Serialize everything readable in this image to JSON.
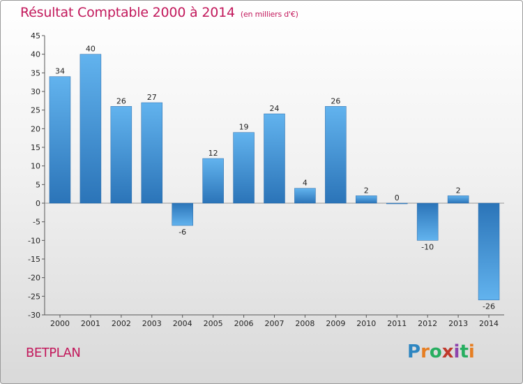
{
  "chart_data": {
    "type": "bar",
    "title": "Résultat Comptable 2000 à 2014",
    "subtitle": "(en milliers d'€)",
    "xlabel": "",
    "ylabel": "",
    "categories": [
      "2000",
      "2001",
      "2002",
      "2003",
      "2004",
      "2005",
      "2006",
      "2007",
      "2008",
      "2009",
      "2010",
      "2011",
      "2012",
      "2013",
      "2014"
    ],
    "values": [
      34,
      40,
      26,
      27,
      -6,
      12,
      19,
      24,
      4,
      26,
      2,
      0,
      -10,
      2,
      -26
    ],
    "data_labels": [
      "34",
      "40",
      "26",
      "27",
      "-6",
      "12",
      "19",
      "24",
      "4",
      "26",
      "2",
      "0",
      "-10",
      "2",
      "-26"
    ],
    "ylim": [
      -30,
      45
    ],
    "yticks": [
      45,
      40,
      35,
      30,
      25,
      20,
      15,
      10,
      5,
      0,
      -5,
      -10,
      -15,
      -20,
      -25,
      -30
    ],
    "ytick_labels": [
      "45",
      "40",
      "35",
      "30",
      "25",
      "20",
      "15",
      "10",
      "5",
      "0",
      "-5",
      "-10",
      "-15",
      "-20",
      "-25",
      "-30"
    ],
    "grid": false,
    "bar_color": "#3a8fd6",
    "bar_color_light": "#5fb0ec",
    "bar_color_dark": "#2a72b5"
  },
  "entity_name": "BETPLAN",
  "brand": {
    "letters": [
      "P",
      "r",
      "o",
      "x",
      "i",
      "t",
      "i"
    ],
    "colors": [
      "#2e86c1",
      "#e67e22",
      "#27ae60",
      "#c0392b",
      "#8e44ad",
      "#27ae60",
      "#e67e22"
    ]
  },
  "colors": {
    "title": "#c2185b",
    "axis": "#444444"
  }
}
